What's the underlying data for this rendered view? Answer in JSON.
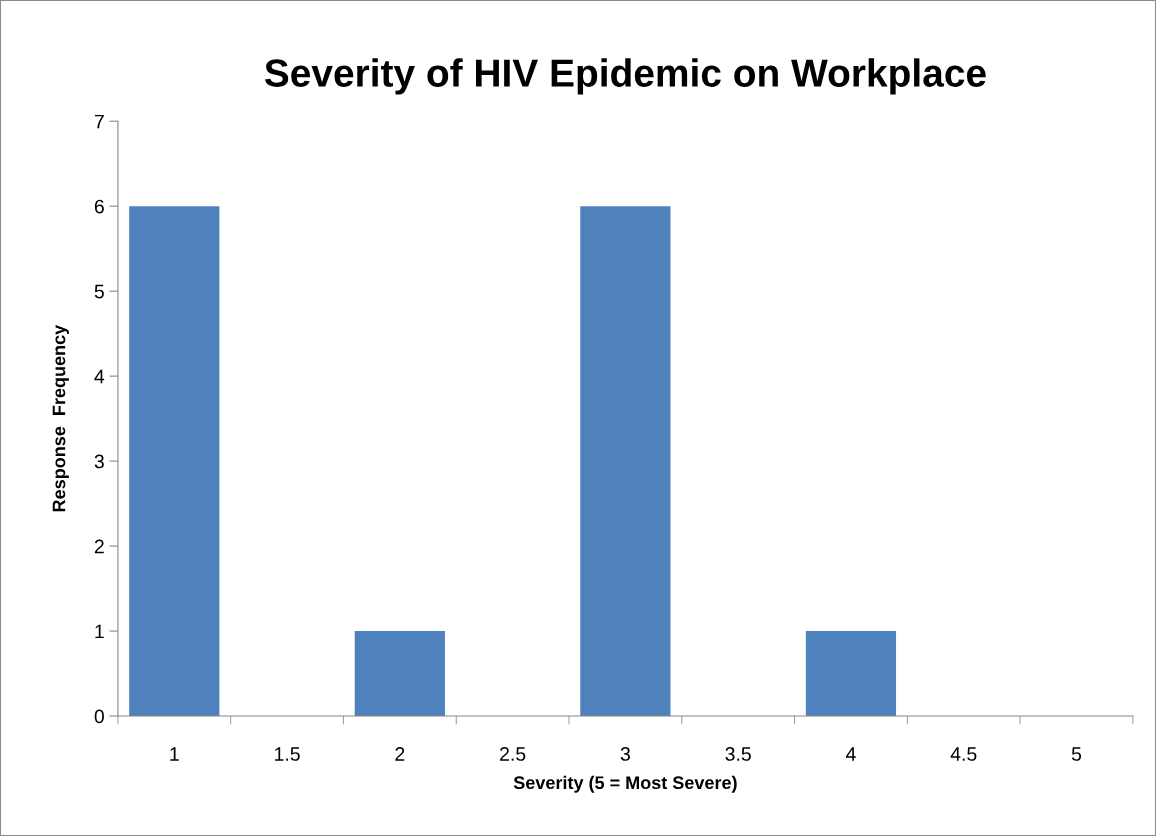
{
  "chart_data": {
    "type": "bar",
    "title": "Severity of HIV Epidemic on Workplace",
    "xlabel": "Severity (5 = Most Severe)",
    "ylabel": "Response  Frequency",
    "categories": [
      "1",
      "1.5",
      "2",
      "2.5",
      "3",
      "3.5",
      "4",
      "4.5",
      "5"
    ],
    "values": [
      6,
      0,
      1,
      0,
      6,
      0,
      1,
      0,
      0
    ],
    "color": "#4f81bd",
    "ylim": [
      0,
      7
    ],
    "yticks": [
      0,
      1,
      2,
      3,
      4,
      5,
      6,
      7
    ],
    "grid": false,
    "legend": false
  }
}
